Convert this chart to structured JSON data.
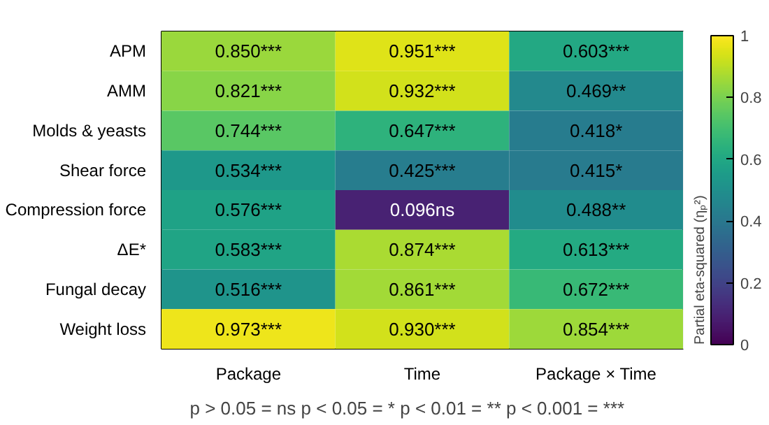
{
  "chart_data": {
    "type": "heatmap",
    "clabel": "Partial eta-squared (ηₚ²)",
    "categories": [
      "Package",
      "Time",
      "Package × Time"
    ],
    "y_categories": [
      "APM",
      "AMM",
      "Molds & yeasts",
      "Shear force",
      "Compression force",
      "ΔE*",
      "Fungal decay",
      "Weight loss"
    ],
    "cells": [
      [
        0.85,
        0.951,
        0.603
      ],
      [
        0.821,
        0.932,
        0.469
      ],
      [
        0.744,
        0.647,
        0.418
      ],
      [
        0.534,
        0.425,
        0.415
      ],
      [
        0.576,
        0.096,
        0.488
      ],
      [
        0.583,
        0.874,
        0.613
      ],
      [
        0.516,
        0.861,
        0.672
      ],
      [
        0.973,
        0.93,
        0.854
      ]
    ],
    "cell_labels": [
      [
        "0.850***",
        "0.951***",
        "0.603***"
      ],
      [
        "0.821***",
        "0.932***",
        "0.469**"
      ],
      [
        "0.744***",
        "0.647***",
        "0.418*"
      ],
      [
        "0.534***",
        "0.425***",
        "0.415*"
      ],
      [
        "0.576***",
        "0.096ns",
        "0.488**"
      ],
      [
        "0.583***",
        "0.874***",
        "0.613***"
      ],
      [
        "0.516***",
        "0.861***",
        "0.672***"
      ],
      [
        "0.973***",
        "0.930***",
        "0.854***"
      ]
    ],
    "clim": [
      0,
      1
    ],
    "cticks": [
      0,
      0.2,
      0.4,
      0.6,
      0.8,
      1
    ],
    "annotations": [
      "p > 0.05 = ns   p < 0.05 = *   p < 0.01 = **   p < 0.001 = ***"
    ]
  }
}
